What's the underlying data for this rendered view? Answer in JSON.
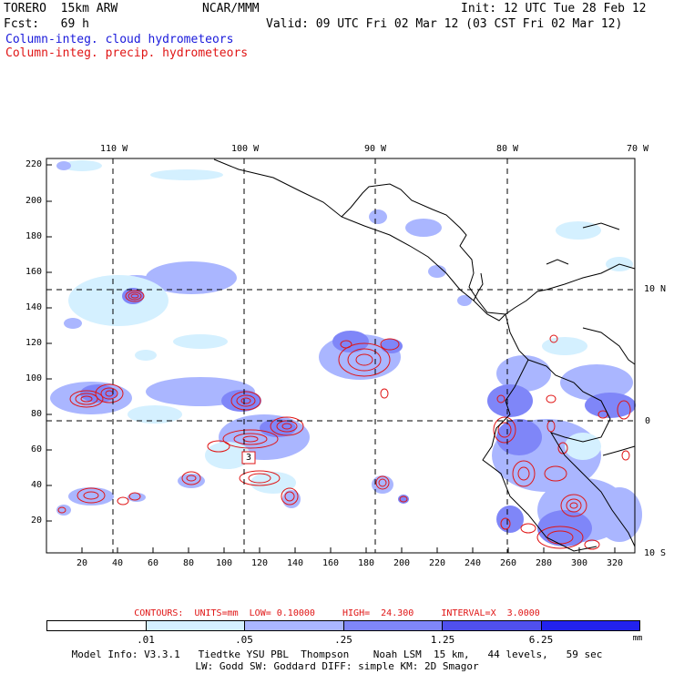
{
  "header": {
    "model": "TORERO  15km ARW",
    "org": "NCAR/MMM",
    "init": "Init: 12 UTC Tue 28 Feb 12",
    "fcst": "Fcst:   69 h",
    "valid": "Valid: 09 UTC Fri 02 Mar 12 (03 CST Fri 02 Mar 12)",
    "line_cloud": "Column-integ. cloud hydrometeors",
    "line_precip": "Column-integ. precip. hydrometeors"
  },
  "axes": {
    "top_lon_labels": [
      "110 W",
      "100 W",
      "90 W",
      "80 W",
      "70 W"
    ],
    "right_lat_labels": [
      "10 N",
      "0",
      "10 S"
    ],
    "left_ticks": [
      "220",
      "200",
      "180",
      "160",
      "140",
      "120",
      "100",
      "80",
      "60",
      "40",
      "20"
    ],
    "bottom_ticks": [
      "20",
      "40",
      "60",
      "80",
      "100",
      "120",
      "140",
      "160",
      "180",
      "200",
      "220",
      "240",
      "260",
      "280",
      "300",
      "320"
    ]
  },
  "contour_info": "CONTOURS:  UNITS=mm  LOW= 0.10000     HIGH=  24.300     INTERVAL=X  3.0000",
  "legend": {
    "unit": "mm",
    "levels": [
      ".01",
      ".05",
      ".25",
      "1.25",
      "6.25"
    ],
    "colors": [
      "#ffffff",
      "#d4f0ff",
      "#aab6ff",
      "#7f86f8",
      "#5050ee",
      "#2222ee"
    ]
  },
  "marker_label": "3",
  "footer": {
    "line1": "Model Info: V3.3.1   Tiedtke YSU PBL  Thompson    Noah LSM  15 km,   44 levels,   59 sec",
    "line2": "LW: Godd SW: Goddard DIFF: simple KM: 2D Smagor"
  },
  "colors": {
    "cloud_light": "#d4f0ff",
    "cloud_mid": "#aab6ff",
    "cloud_dark": "#7f86f8",
    "cloud_deep": "#5050ee",
    "precip": "#e01515",
    "coast": "#000000"
  }
}
